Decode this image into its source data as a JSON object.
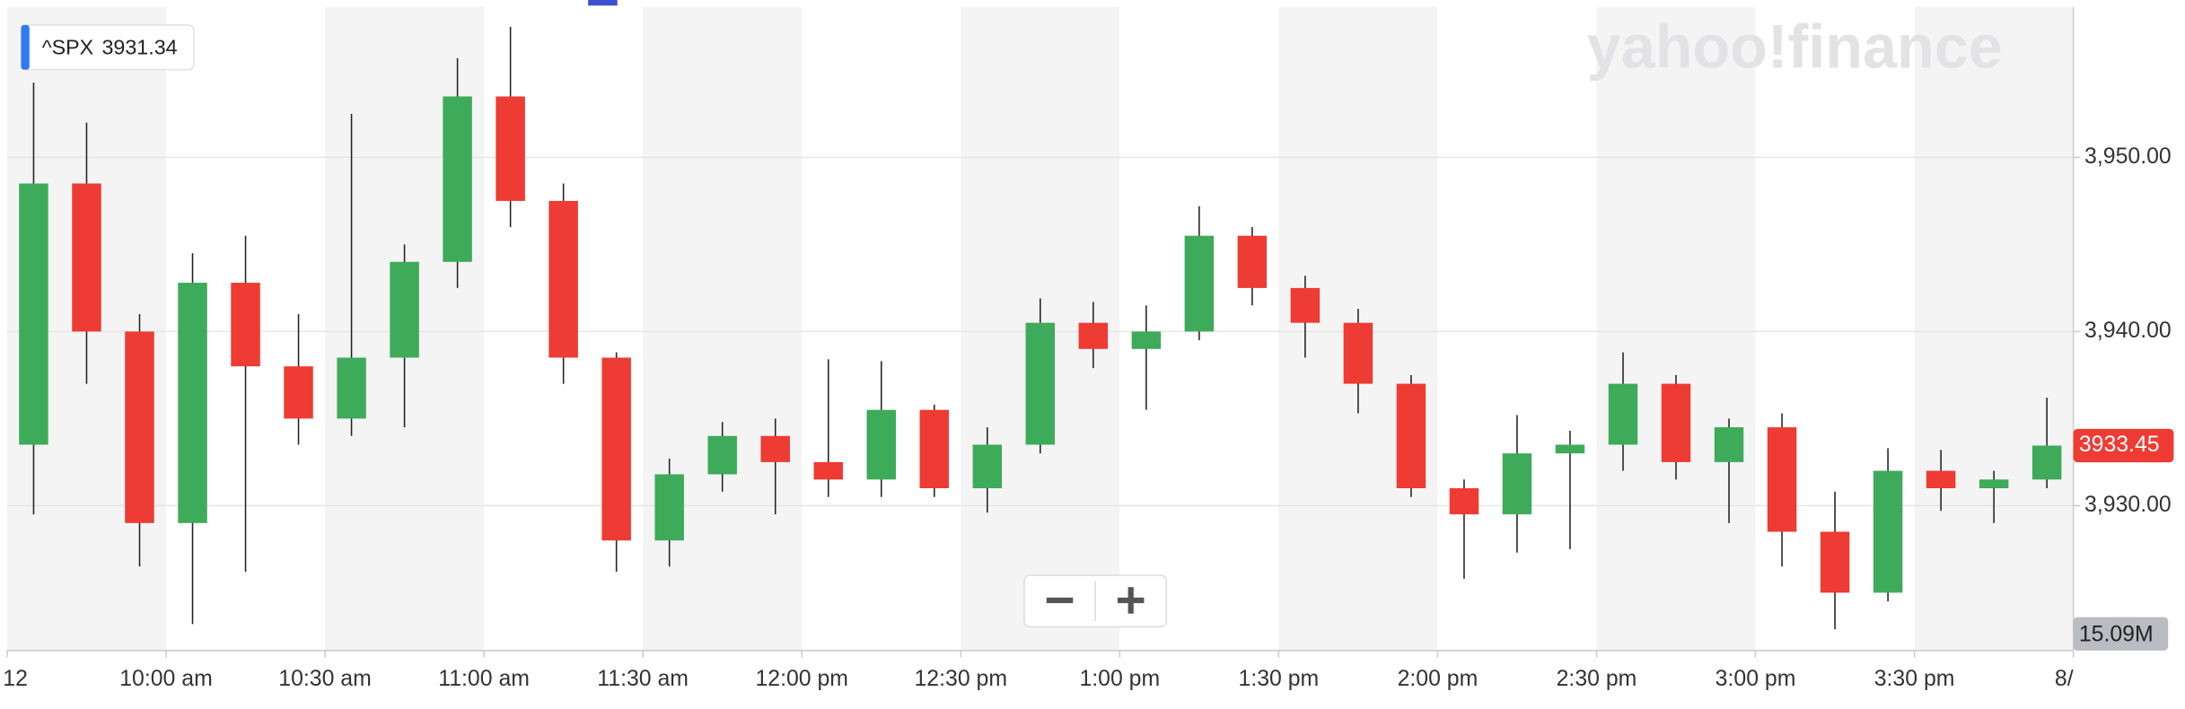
{
  "chart_data": {
    "type": "candlestick",
    "symbol": "^SPX",
    "quote": 3931.34,
    "logo": "yahoo!finance",
    "last_price": 3933.45,
    "volume_label": "15.09M",
    "up_color": "#3dab5a",
    "down_color": "#ee3b33",
    "grid": true,
    "x": [
      5,
      15,
      25,
      35,
      45,
      55,
      65,
      75,
      85,
      95,
      105,
      115,
      125,
      135,
      145,
      155,
      165,
      175,
      185,
      195,
      205,
      215,
      225,
      235,
      245,
      255,
      265,
      275,
      285,
      295,
      305,
      315,
      325,
      335,
      345,
      355,
      365,
      375,
      385
    ],
    "xlim": [
      0,
      390
    ],
    "xticks": [
      {
        "value": 0,
        "label": "12"
      },
      {
        "value": 30,
        "label": "10:00 am"
      },
      {
        "value": 60,
        "label": "10:30 am"
      },
      {
        "value": 90,
        "label": "11:00 am"
      },
      {
        "value": 120,
        "label": "11:30 am"
      },
      {
        "value": 150,
        "label": "12:00 pm"
      },
      {
        "value": 180,
        "label": "12:30 pm"
      },
      {
        "value": 210,
        "label": "1:00 pm"
      },
      {
        "value": 240,
        "label": "1:30 pm"
      },
      {
        "value": 270,
        "label": "2:00 pm"
      },
      {
        "value": 300,
        "label": "2:30 pm"
      },
      {
        "value": 330,
        "label": "3:00 pm"
      },
      {
        "value": 360,
        "label": "3:30 pm"
      },
      {
        "value": 390,
        "label": "8/"
      }
    ],
    "ylim": [
      3921.68,
      3958.64
    ],
    "yticks": [
      {
        "value": 3930,
        "label": "3,930.00"
      },
      {
        "value": 3940,
        "label": "3,940.00"
      },
      {
        "value": 3950,
        "label": "3,950.00"
      }
    ],
    "open": [
      3933.5,
      3948.5,
      3940,
      3929,
      3942.8,
      3938,
      3935,
      3938.5,
      3944,
      3953.5,
      3947.5,
      3938.5,
      3928,
      3931.8,
      3934,
      3932.5,
      3931.5,
      3935.5,
      3931,
      3933.5,
      3940.5,
      3939,
      3940,
      3945.5,
      3942.5,
      3940.5,
      3937,
      3931,
      3929.5,
      3933,
      3933.5,
      3937,
      3932.5,
      3934.5,
      3928.5,
      3925,
      3932,
      3931,
      3931.5
    ],
    "high": [
      3954.3,
      3952,
      3941,
      3944.5,
      3945.5,
      3941,
      3952.5,
      3945,
      3955.7,
      3957.5,
      3948.5,
      3938.8,
      3932.7,
      3934.8,
      3935,
      3938.4,
      3938.3,
      3935.8,
      3934.5,
      3941.9,
      3941.7,
      3941.5,
      3947.2,
      3946,
      3943.2,
      3941.3,
      3937.5,
      3931.5,
      3935.2,
      3934.3,
      3938.8,
      3937.5,
      3935,
      3935.3,
      3930.8,
      3933.3,
      3933.2,
      3932,
      3936.2
    ],
    "low": [
      3929.5,
      3937,
      3926.5,
      3923.2,
      3926.2,
      3933.5,
      3934,
      3934.5,
      3942.5,
      3946,
      3937,
      3926.2,
      3926.5,
      3930.8,
      3929.5,
      3930.5,
      3930.5,
      3930.5,
      3929.6,
      3933,
      3937.9,
      3935.5,
      3939.5,
      3941.5,
      3938.5,
      3935.3,
      3930.5,
      3925.8,
      3927.3,
      3927.5,
      3932,
      3931.5,
      3929,
      3926.5,
      3922.9,
      3924.5,
      3929.7,
      3929,
      3931
    ],
    "close": [
      3948.5,
      3940,
      3929,
      3942.8,
      3938,
      3935,
      3938.5,
      3944,
      3953.5,
      3947.5,
      3938.5,
      3928,
      3931.8,
      3934,
      3932.5,
      3931.5,
      3935.5,
      3931,
      3933.5,
      3940.5,
      3939,
      3940,
      3945.5,
      3942.5,
      3940.5,
      3937,
      3931,
      3929.5,
      3933,
      3933.5,
      3937,
      3932.5,
      3934.5,
      3928.5,
      3925,
      3932,
      3931,
      3931.5,
      3933.45
    ]
  }
}
